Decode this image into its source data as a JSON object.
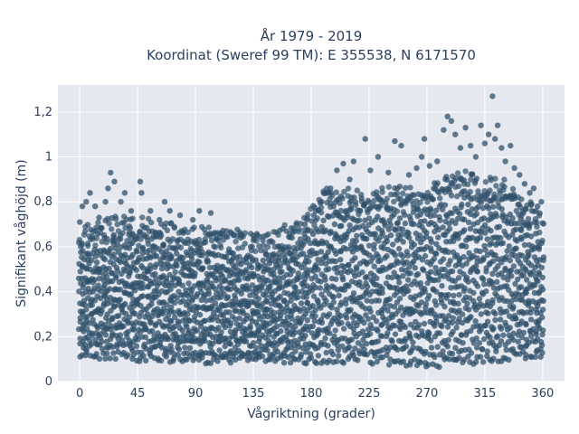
{
  "chart_data": {
    "type": "scatter",
    "title_line1": "År 1979 - 2019",
    "title_line2": "Koordinat (Sweref 99 TM): E 355538, N 6171570",
    "xlabel": "Vågriktning (grader)",
    "ylabel": "Signifikant våghöjd (m)",
    "xlim": [
      -17,
      377
    ],
    "ylim": [
      0,
      1.32
    ],
    "xticks": [
      0,
      45,
      90,
      135,
      180,
      225,
      270,
      315,
      360
    ],
    "xtick_labels": [
      "0",
      "45",
      "90",
      "135",
      "180",
      "225",
      "270",
      "315",
      "360"
    ],
    "yticks": [
      0,
      0.2,
      0.4,
      0.6,
      0.8,
      1.0,
      1.2
    ],
    "ytick_labels": [
      "0",
      "0,2",
      "0,4",
      "0,6",
      "0,8",
      "1",
      "1,2"
    ],
    "grid": true,
    "legend": "none",
    "marker_color": "#2f5069",
    "plot_bgcolor": "#e5e8ef",
    "envelope": {
      "description_direction_deg": [
        0,
        30,
        45,
        60,
        90,
        120,
        135,
        150,
        175,
        180,
        190,
        225,
        270,
        300,
        315,
        330,
        345,
        360
      ],
      "dense_top_m": [
        0.58,
        0.62,
        0.62,
        0.6,
        0.58,
        0.56,
        0.54,
        0.55,
        0.62,
        0.65,
        0.74,
        0.74,
        0.76,
        0.82,
        0.8,
        0.78,
        0.72,
        0.62
      ],
      "dense_bottom_m": [
        0.1,
        0.1,
        0.09,
        0.09,
        0.08,
        0.08,
        0.08,
        0.08,
        0.08,
        0.08,
        0.08,
        0.08,
        0.06,
        0.07,
        0.08,
        0.09,
        0.1,
        0.1
      ]
    },
    "outliers": [
      {
        "x": 0,
        "y": 0.71
      },
      {
        "x": 2,
        "y": 0.78
      },
      {
        "x": 5,
        "y": 0.8
      },
      {
        "x": 8,
        "y": 0.84
      },
      {
        "x": 12,
        "y": 0.78
      },
      {
        "x": 15,
        "y": 0.73
      },
      {
        "x": 20,
        "y": 0.8
      },
      {
        "x": 22,
        "y": 0.86
      },
      {
        "x": 24,
        "y": 0.93
      },
      {
        "x": 27,
        "y": 0.89
      },
      {
        "x": 32,
        "y": 0.8
      },
      {
        "x": 35,
        "y": 0.84
      },
      {
        "x": 40,
        "y": 0.76
      },
      {
        "x": 47,
        "y": 0.89
      },
      {
        "x": 48,
        "y": 0.84
      },
      {
        "x": 55,
        "y": 0.76
      },
      {
        "x": 62,
        "y": 0.72
      },
      {
        "x": 66,
        "y": 0.8
      },
      {
        "x": 70,
        "y": 0.76
      },
      {
        "x": 78,
        "y": 0.74
      },
      {
        "x": 88,
        "y": 0.72
      },
      {
        "x": 93,
        "y": 0.76
      },
      {
        "x": 102,
        "y": 0.75
      },
      {
        "x": 110,
        "y": 0.66
      },
      {
        "x": 125,
        "y": 0.64
      },
      {
        "x": 135,
        "y": 0.65
      },
      {
        "x": 150,
        "y": 0.62
      },
      {
        "x": 158,
        "y": 0.68
      },
      {
        "x": 165,
        "y": 0.64
      },
      {
        "x": 175,
        "y": 0.7
      },
      {
        "x": 182,
        "y": 0.74
      },
      {
        "x": 188,
        "y": 0.8
      },
      {
        "x": 195,
        "y": 0.86
      },
      {
        "x": 200,
        "y": 0.94
      },
      {
        "x": 205,
        "y": 0.97
      },
      {
        "x": 210,
        "y": 0.9
      },
      {
        "x": 213,
        "y": 0.98
      },
      {
        "x": 222,
        "y": 1.08
      },
      {
        "x": 226,
        "y": 0.94
      },
      {
        "x": 232,
        "y": 1.0
      },
      {
        "x": 240,
        "y": 0.93
      },
      {
        "x": 245,
        "y": 1.07
      },
      {
        "x": 250,
        "y": 1.05
      },
      {
        "x": 256,
        "y": 0.92
      },
      {
        "x": 262,
        "y": 0.95
      },
      {
        "x": 266,
        "y": 1.0
      },
      {
        "x": 268,
        "y": 1.08
      },
      {
        "x": 272,
        "y": 0.96
      },
      {
        "x": 278,
        "y": 0.98
      },
      {
        "x": 283,
        "y": 1.12
      },
      {
        "x": 286,
        "y": 1.18
      },
      {
        "x": 289,
        "y": 1.16
      },
      {
        "x": 292,
        "y": 1.1
      },
      {
        "x": 296,
        "y": 1.04
      },
      {
        "x": 300,
        "y": 1.13
      },
      {
        "x": 304,
        "y": 1.05
      },
      {
        "x": 308,
        "y": 1.0
      },
      {
        "x": 312,
        "y": 1.14
      },
      {
        "x": 315,
        "y": 1.06
      },
      {
        "x": 318,
        "y": 1.1
      },
      {
        "x": 321,
        "y": 1.27
      },
      {
        "x": 323,
        "y": 1.08
      },
      {
        "x": 325,
        "y": 1.14
      },
      {
        "x": 328,
        "y": 1.04
      },
      {
        "x": 331,
        "y": 0.98
      },
      {
        "x": 335,
        "y": 1.05
      },
      {
        "x": 338,
        "y": 0.95
      },
      {
        "x": 342,
        "y": 0.92
      },
      {
        "x": 346,
        "y": 0.88
      },
      {
        "x": 350,
        "y": 0.84
      },
      {
        "x": 353,
        "y": 0.86
      },
      {
        "x": 356,
        "y": 0.78
      },
      {
        "x": 359,
        "y": 0.8
      }
    ]
  }
}
